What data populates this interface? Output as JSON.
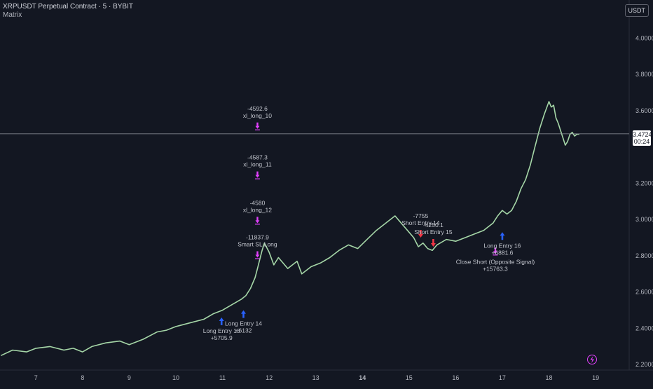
{
  "header": {
    "symbol": "XRPUSDT Perpetual Contract · 5 · BYBIT",
    "indicator": "Matrix"
  },
  "currency": "USDT",
  "current_price": {
    "value": "3.4724",
    "countdown": "00:24"
  },
  "colors": {
    "background": "#131722",
    "candle": "#a5d6a7",
    "long": "#2962ff",
    "short": "#f23645",
    "exit": "#e040fb",
    "grid_line": "#2a2e39",
    "price_line": "#9598a1"
  },
  "chart_data": {
    "type": "line",
    "x_ticks": [
      "7",
      "8",
      "9",
      "10",
      "11",
      "12",
      "13",
      "14",
      "15",
      "16",
      "17",
      "18",
      "19"
    ],
    "x_tick_days": [
      7,
      8,
      9,
      10,
      11,
      12,
      13,
      14,
      15,
      16,
      17,
      18,
      19
    ],
    "xlim": [
      6.23,
      19.72
    ],
    "y_ticks": [
      "4.0000",
      "3.8000",
      "3.6000",
      "3.2000",
      "3.0000",
      "2.8000",
      "2.6000",
      "2.4000",
      "2.2000"
    ],
    "y_tick_values": [
      4.0,
      3.8,
      3.6,
      3.2,
      3.0,
      2.8,
      2.6,
      2.4,
      2.2
    ],
    "ylim": [
      2.17,
      4.21
    ],
    "series": [
      {
        "x": [
          6.25,
          6.5,
          6.8,
          7.0,
          7.3,
          7.6,
          7.8,
          8.0,
          8.2,
          8.5,
          8.8,
          9.0,
          9.3,
          9.6,
          9.8,
          10.0,
          10.3,
          10.6,
          10.8,
          11.0,
          11.2,
          11.4,
          11.5,
          11.6,
          11.7,
          11.75,
          11.8,
          11.85,
          11.9,
          12.0,
          12.1,
          12.2,
          12.4,
          12.6,
          12.7,
          12.8,
          12.9,
          13.1,
          13.3,
          13.5,
          13.7,
          13.9,
          14.1,
          14.3,
          14.5,
          14.7,
          14.8,
          14.9,
          15.0,
          15.1,
          15.2,
          15.3,
          15.4,
          15.5,
          15.6,
          15.8,
          16.0,
          16.2,
          16.4,
          16.6,
          16.7,
          16.8,
          16.9,
          17.0,
          17.1,
          17.2,
          17.3,
          17.4,
          17.5,
          17.6,
          17.7,
          17.8,
          17.9,
          18.0,
          18.05,
          18.1,
          18.15,
          18.2,
          18.25,
          18.3,
          18.35,
          18.4,
          18.45,
          18.5,
          18.55,
          18.6,
          18.65
        ],
        "values": [
          2.25,
          2.28,
          2.27,
          2.29,
          2.3,
          2.28,
          2.29,
          2.27,
          2.3,
          2.32,
          2.33,
          2.31,
          2.34,
          2.38,
          2.39,
          2.41,
          2.43,
          2.45,
          2.48,
          2.5,
          2.53,
          2.56,
          2.58,
          2.62,
          2.68,
          2.73,
          2.78,
          2.83,
          2.87,
          2.82,
          2.75,
          2.79,
          2.73,
          2.77,
          2.7,
          2.72,
          2.74,
          2.76,
          2.79,
          2.83,
          2.86,
          2.84,
          2.89,
          2.94,
          2.98,
          3.02,
          2.99,
          2.96,
          2.93,
          2.9,
          2.85,
          2.87,
          2.84,
          2.83,
          2.86,
          2.89,
          2.88,
          2.9,
          2.92,
          2.94,
          2.96,
          2.98,
          3.02,
          3.05,
          3.03,
          3.05,
          3.1,
          3.17,
          3.22,
          3.3,
          3.4,
          3.5,
          3.58,
          3.65,
          3.62,
          3.63,
          3.56,
          3.53,
          3.49,
          3.45,
          3.41,
          3.43,
          3.47,
          3.48,
          3.46,
          3.47,
          3.47
        ]
      }
    ],
    "current_price_value": 3.4724,
    "markers": [
      {
        "x": 10.98,
        "y": 2.46,
        "kind": "long",
        "labels": [
          "Long Entry 13",
          "+5705.9"
        ]
      },
      {
        "x": 11.45,
        "y": 2.5,
        "kind": "long",
        "labels": [
          "Long Entry 14",
          "+6132"
        ]
      },
      {
        "x": 11.75,
        "y": 3.5,
        "kind": "exit",
        "labels": [
          "-4592.6",
          "xl_long_10"
        ]
      },
      {
        "x": 11.75,
        "y": 3.23,
        "kind": "exit",
        "labels": [
          "-4587.3",
          "xl_long_11"
        ]
      },
      {
        "x": 11.75,
        "y": 2.98,
        "kind": "exit",
        "labels": [
          "-4580",
          "xl_long_12"
        ]
      },
      {
        "x": 11.75,
        "y": 2.79,
        "kind": "exit",
        "labels": [
          "-11837.9",
          "Smart SL Long"
        ]
      },
      {
        "x": 15.25,
        "y": 2.9,
        "kind": "short",
        "labels": [
          "-7755",
          "Short Entry 14"
        ]
      },
      {
        "x": 15.52,
        "y": 2.85,
        "kind": "short",
        "labels": [
          "-4250.1",
          "Short Entry 15"
        ]
      },
      {
        "x": 16.85,
        "y": 2.81,
        "kind": "exit",
        "labels": [
          "Close Short (Opposite Signal)",
          "+15763.3"
        ]
      },
      {
        "x": 17.0,
        "y": 2.93,
        "kind": "long",
        "labels": [
          "Long Entry 16",
          "+6881.6"
        ]
      }
    ]
  }
}
